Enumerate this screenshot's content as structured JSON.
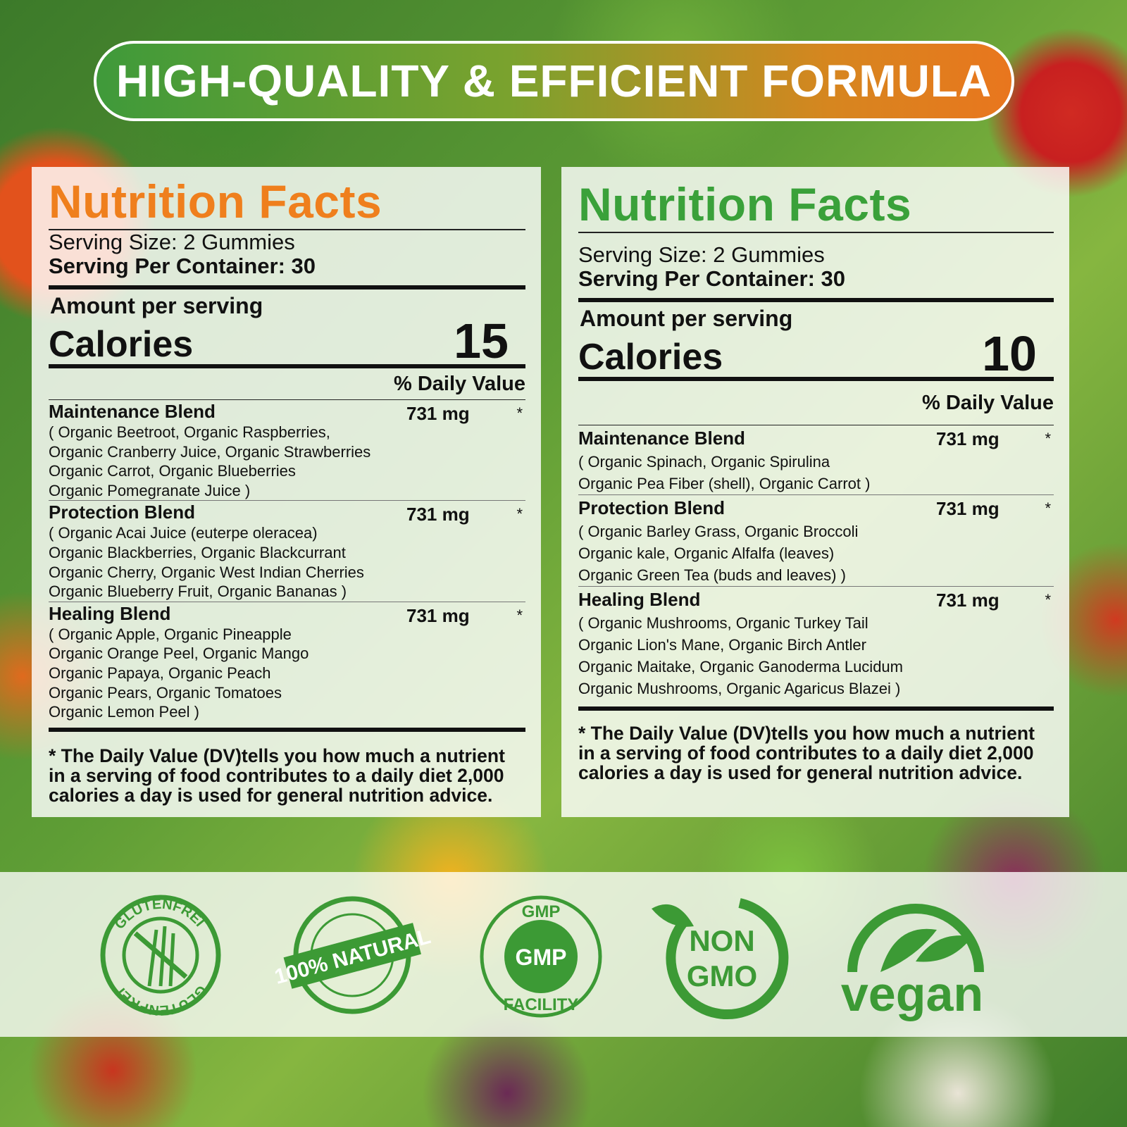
{
  "banner": {
    "title": "HIGH-QUALITY & EFFICIENT FORMULA"
  },
  "panels": [
    {
      "title": "Nutrition Facts",
      "serving_size": "Serving Size: 2 Gummies",
      "serving_per_container": "Serving Per Container: 30",
      "amount_per_serving": "Amount per serving",
      "calories_label": "Calories",
      "calories_value": "15",
      "daily_value_header": "% Daily Value",
      "blends": [
        {
          "name": "Maintenance Blend",
          "amount": "731 mg",
          "dv": "*",
          "ingredients": [
            "( Organic Beetroot, Organic Raspberries,",
            "Organic Cranberry Juice, Organic Strawberries",
            "Organic Carrot, Organic Blueberries",
            "Organic Pomegranate Juice )"
          ]
        },
        {
          "name": "Protection Blend",
          "amount": "731 mg",
          "dv": "*",
          "ingredients": [
            "( Organic Acai Juice (euterpe oleracea)",
            "Organic Blackberries, Organic Blackcurrant",
            "Organic Cherry, Organic West Indian Cherries",
            "Organic Blueberry Fruit, Organic Bananas )"
          ]
        },
        {
          "name": "Healing Blend",
          "amount": "731 mg",
          "dv": "*",
          "ingredients": [
            "( Organic Apple, Organic Pineapple",
            "Organic Orange Peel, Organic Mango",
            "Organic Papaya, Organic Peach",
            "Organic Pears, Organic Tomatoes",
            "Organic Lemon Peel )"
          ]
        }
      ],
      "footnote": "* The Daily Value (DV)tells you how much a nutrient in a serving of food contributes to a daily diet 2,000 calories a day is used for general nutrition advice."
    },
    {
      "title": "Nutrition Facts",
      "serving_size": "Serving Size: 2 Gummies",
      "serving_per_container": "Serving Per Container: 30",
      "amount_per_serving": "Amount per serving",
      "calories_label": "Calories",
      "calories_value": "10",
      "daily_value_header": "% Daily Value",
      "blends": [
        {
          "name": "Maintenance Blend",
          "amount": "731 mg",
          "dv": "*",
          "ingredients": [
            "( Organic Spinach, Organic Spirulina",
            "Organic Pea Fiber (shell), Organic Carrot )"
          ]
        },
        {
          "name": "Protection Blend",
          "amount": "731 mg",
          "dv": "*",
          "ingredients": [
            "( Organic Barley Grass, Organic Broccoli",
            "Organic kale, Organic Alfalfa (leaves)",
            "Organic Green Tea (buds and leaves) )"
          ]
        },
        {
          "name": "Healing Blend",
          "amount": "731 mg",
          "dv": "*",
          "ingredients": [
            "( Organic Mushrooms, Organic Turkey Tail",
            "Organic Lion's Mane, Organic Birch Antler",
            "Organic Maitake, Organic Ganoderma Lucidum",
            "Organic Mushrooms, Organic Agaricus Blazei )"
          ]
        }
      ],
      "footnote": "* The Daily Value (DV)tells you how much a nutrient in a serving of food contributes to a daily diet 2,000 calories a day is used for general nutrition advice."
    }
  ],
  "badges": [
    {
      "icon": "gluten-free-icon",
      "text": "GLUTENFREI"
    },
    {
      "icon": "natural-icon",
      "text": "100% NATURAL"
    },
    {
      "icon": "gmp-icon",
      "text": "GMP",
      "sub": "FACILITY"
    },
    {
      "icon": "non-gmo-icon",
      "text": "NON",
      "sub": "GMO"
    },
    {
      "icon": "vegan-icon",
      "text": "vegan"
    }
  ],
  "colors": {
    "orange": "#ef7f1d",
    "green": "#3aa13a",
    "badge_green": "#3c9a35"
  }
}
